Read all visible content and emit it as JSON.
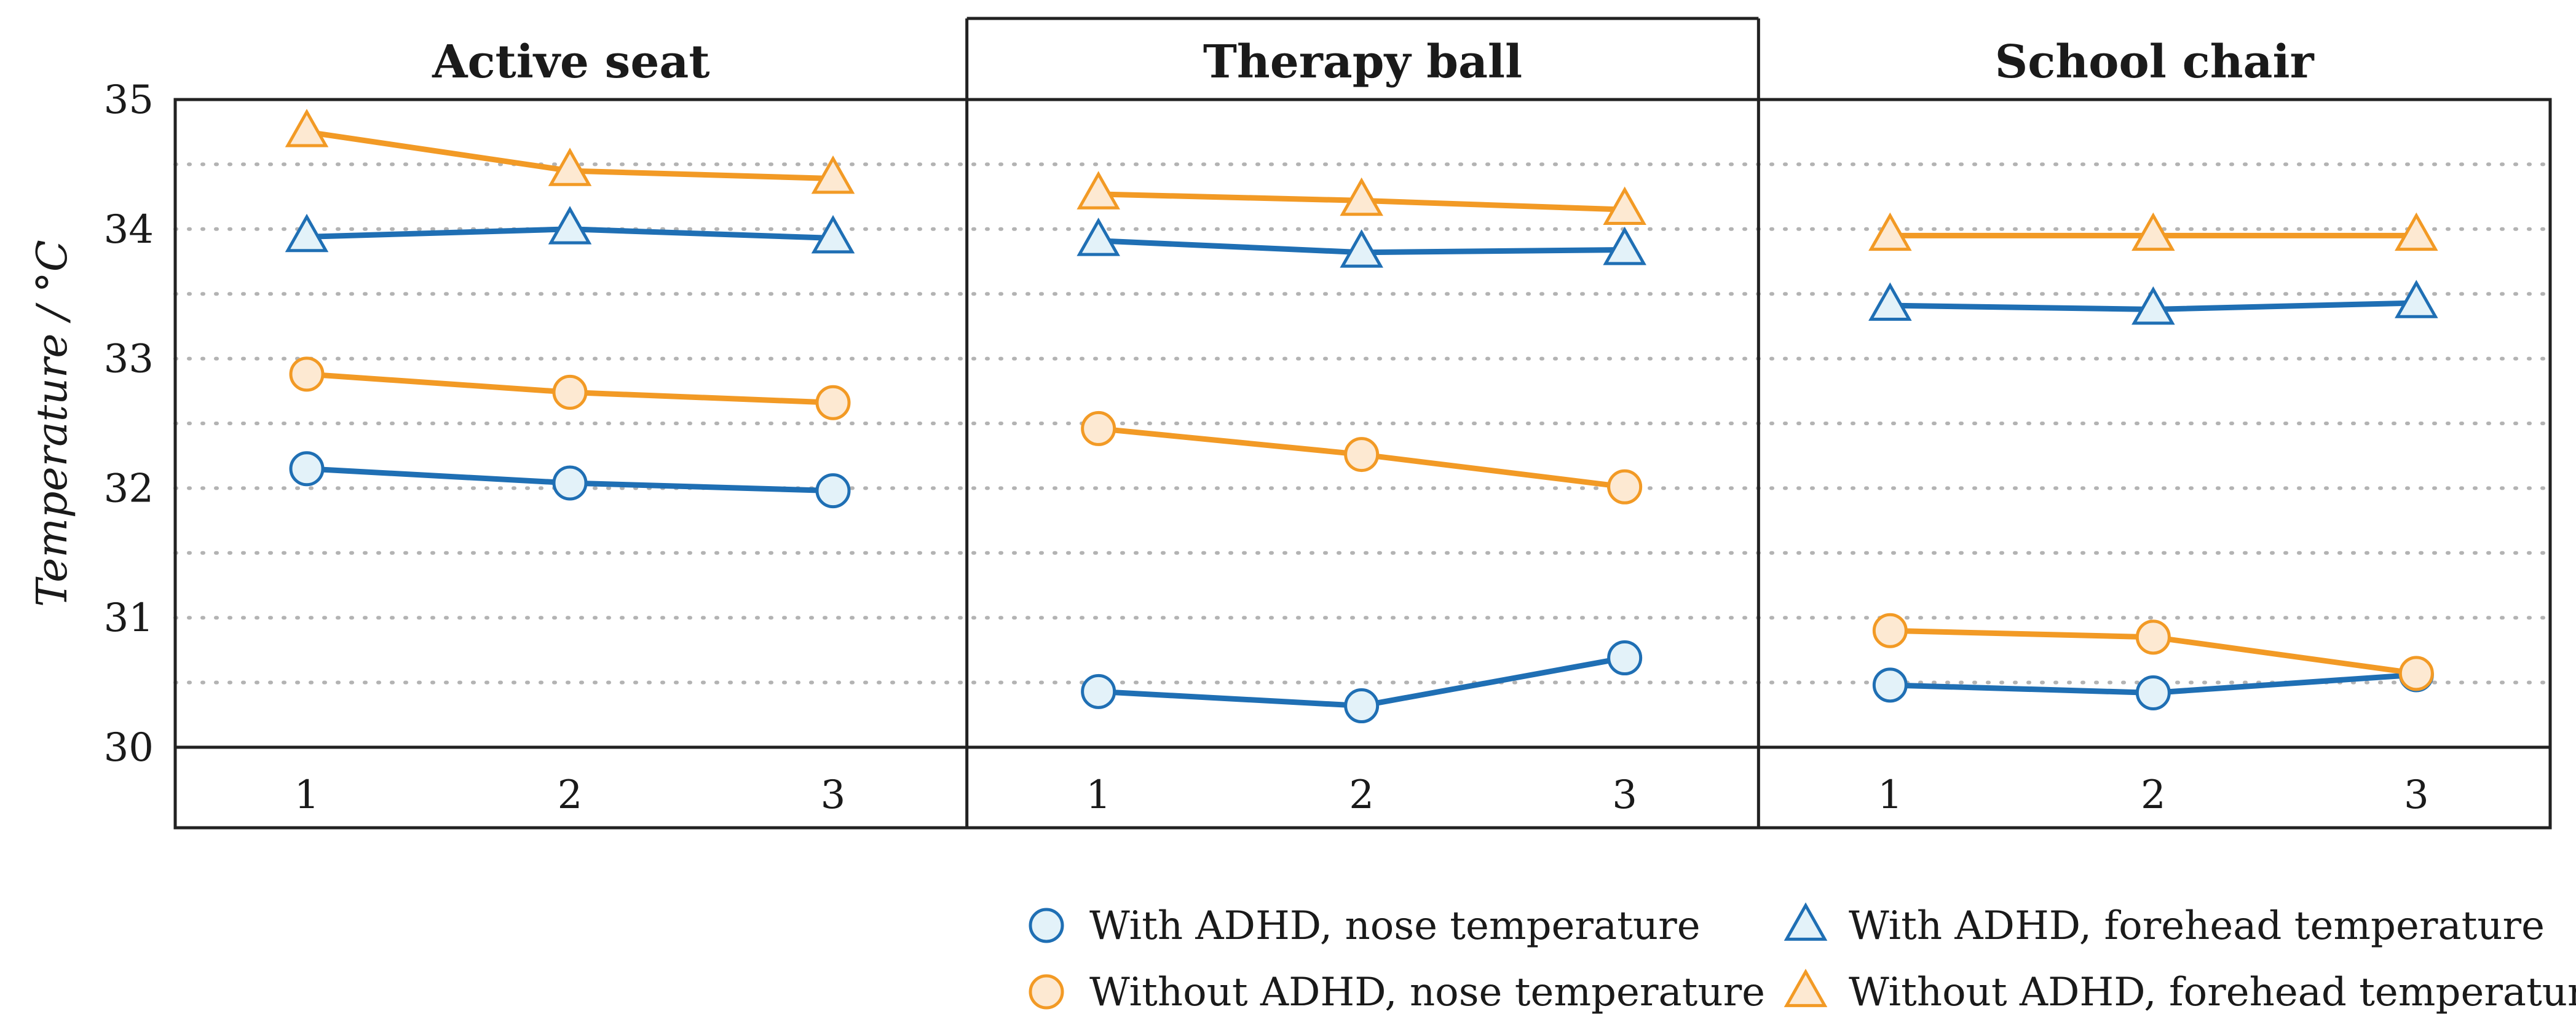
{
  "chart_data": {
    "type": "line",
    "ylabel": "Temperature / °C",
    "ylim": [
      30,
      35
    ],
    "yticks": [
      30,
      31,
      32,
      33,
      34,
      35
    ],
    "x": [
      1,
      2,
      3
    ],
    "xtick_labels": [
      "1",
      "2",
      "3"
    ],
    "colors": {
      "with_adhd": "#1f6fb4",
      "with_adhd_fill": "#e3f2f9",
      "without_adhd": "#f29a25",
      "without_adhd_fill": "#fde9d2"
    },
    "panels": [
      {
        "title": "Active seat",
        "series": [
          {
            "name": "With ADHD, nose temperature",
            "values": [
              32.15,
              32.04,
              31.98
            ]
          },
          {
            "name": "With ADHD, forehead temperature",
            "values": [
              33.94,
              34.0,
              33.93
            ]
          },
          {
            "name": "Without ADHD, nose temperature",
            "values": [
              32.88,
              32.74,
              32.66
            ]
          },
          {
            "name": "Without ADHD, forehead temperature",
            "values": [
              34.75,
              34.45,
              34.39
            ]
          }
        ]
      },
      {
        "title": "Therapy ball",
        "series": [
          {
            "name": "With ADHD, nose temperature",
            "values": [
              30.43,
              30.32,
              30.69
            ]
          },
          {
            "name": "With ADHD, forehead temperature",
            "values": [
              33.91,
              33.82,
              33.84
            ]
          },
          {
            "name": "Without ADHD, nose temperature",
            "values": [
              32.46,
              32.26,
              32.01
            ]
          },
          {
            "name": "Without ADHD, forehead temperature",
            "values": [
              34.27,
              34.22,
              34.15
            ]
          }
        ]
      },
      {
        "title": "School chair",
        "series": [
          {
            "name": "With ADHD, nose temperature",
            "values": [
              30.48,
              30.42,
              30.56
            ]
          },
          {
            "name": "With ADHD, forehead temperature",
            "values": [
              33.41,
              33.38,
              33.43
            ]
          },
          {
            "name": "Without ADHD, nose temperature",
            "values": [
              30.9,
              30.85,
              30.57
            ]
          },
          {
            "name": "Without ADHD, forehead temperature",
            "values": [
              33.95,
              33.95,
              33.95
            ]
          }
        ]
      }
    ],
    "legend": [
      {
        "label": "With ADHD, nose temperature",
        "group": "with_adhd",
        "marker": "circle"
      },
      {
        "label": "With ADHD, forehead temperature",
        "group": "with_adhd",
        "marker": "triangle"
      },
      {
        "label": "Without ADHD, nose temperature",
        "group": "without_adhd",
        "marker": "circle"
      },
      {
        "label": "Without ADHD, forehead temperature",
        "group": "without_adhd",
        "marker": "triangle"
      }
    ],
    "legend_position": "bottom-right",
    "grid": "horizontal dotted at 0.5 °C steps"
  }
}
